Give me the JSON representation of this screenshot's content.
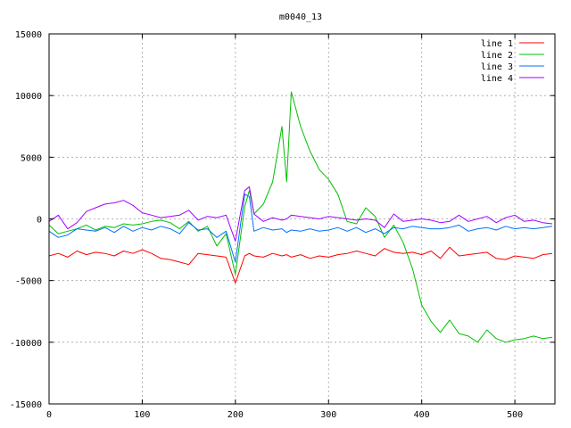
{
  "chart_data": {
    "type": "line",
    "title": "m0040_13",
    "xlabel": "",
    "ylabel": "",
    "xlim": [
      0,
      543
    ],
    "ylim": [
      -15000,
      15000
    ],
    "x_ticks": [
      0,
      100,
      200,
      300,
      400,
      500
    ],
    "y_ticks": [
      -15000,
      -10000,
      -5000,
      0,
      5000,
      10000,
      15000
    ],
    "grid": true,
    "legend_position": "top-right",
    "x": [
      0,
      10,
      20,
      30,
      40,
      50,
      60,
      70,
      80,
      90,
      100,
      110,
      120,
      130,
      140,
      150,
      160,
      170,
      180,
      190,
      200,
      210,
      215,
      220,
      230,
      240,
      250,
      255,
      260,
      270,
      280,
      290,
      300,
      310,
      320,
      330,
      340,
      350,
      360,
      370,
      380,
      390,
      400,
      410,
      420,
      430,
      440,
      450,
      460,
      470,
      480,
      490,
      500,
      510,
      520,
      530,
      540
    ],
    "series": [
      {
        "name": "line 1",
        "color": "#ff0000",
        "values": [
          -3000,
          -2800,
          -3100,
          -2600,
          -2900,
          -2700,
          -2800,
          -3000,
          -2600,
          -2800,
          -2500,
          -2800,
          -3200,
          -3300,
          -3500,
          -3700,
          -2800,
          -2900,
          -3000,
          -3100,
          -5200,
          -3000,
          -2800,
          -3000,
          -3100,
          -2800,
          -3000,
          -2900,
          -3100,
          -2900,
          -3200,
          -3000,
          -3100,
          -2900,
          -2800,
          -2600,
          -2800,
          -3000,
          -2400,
          -2700,
          -2800,
          -2700,
          -2900,
          -2600,
          -3200,
          -2300,
          -3000,
          -2900,
          -2800,
          -2700,
          -3200,
          -3300,
          -3000,
          -3100,
          -3200,
          -2900,
          -2800
        ]
      },
      {
        "name": "line 2",
        "color": "#00c000",
        "values": [
          -500,
          -1200,
          -1000,
          -800,
          -500,
          -900,
          -600,
          -700,
          -400,
          -500,
          -400,
          -200,
          -100,
          -300,
          -800,
          -200,
          -1000,
          -600,
          -2200,
          -1200,
          -4500,
          1000,
          2300,
          400,
          1200,
          3000,
          7500,
          3000,
          10300,
          7500,
          5500,
          4000,
          3200,
          2000,
          -200,
          -400,
          900,
          200,
          -1500,
          -500,
          -1900,
          -4000,
          -7000,
          -8300,
          -9200,
          -8200,
          -9300,
          -9500,
          -10000,
          -9000,
          -9700,
          -10000,
          -9800,
          -9700,
          -9500,
          -9700,
          -9600
        ]
      },
      {
        "name": "line 3",
        "color": "#0070ff",
        "values": [
          -1000,
          -1500,
          -1300,
          -800,
          -900,
          -1000,
          -700,
          -1100,
          -600,
          -1000,
          -700,
          -900,
          -600,
          -800,
          -1200,
          -300,
          -900,
          -800,
          -1500,
          -1000,
          -3500,
          2000,
          1800,
          -1000,
          -700,
          -900,
          -800,
          -1100,
          -900,
          -1000,
          -800,
          -1000,
          -900,
          -700,
          -1000,
          -700,
          -1100,
          -800,
          -1200,
          -700,
          -800,
          -600,
          -700,
          -800,
          -800,
          -700,
          -500,
          -1000,
          -800,
          -700,
          -900,
          -600,
          -800,
          -700,
          -800,
          -700,
          -600
        ]
      },
      {
        "name": "line 4",
        "color": "#a000ff",
        "values": [
          -200,
          300,
          -800,
          -300,
          600,
          900,
          1200,
          1300,
          1500,
          1100,
          500,
          300,
          100,
          200,
          300,
          700,
          -100,
          200,
          100,
          300,
          -1800,
          2300,
          2600,
          400,
          -200,
          100,
          -100,
          0,
          300,
          200,
          100,
          0,
          200,
          100,
          0,
          -100,
          0,
          -100,
          -700,
          400,
          -200,
          -100,
          0,
          -100,
          -300,
          -200,
          300,
          -200,
          0,
          200,
          -300,
          100,
          300,
          -200,
          -100,
          -300,
          -400
        ]
      }
    ]
  }
}
